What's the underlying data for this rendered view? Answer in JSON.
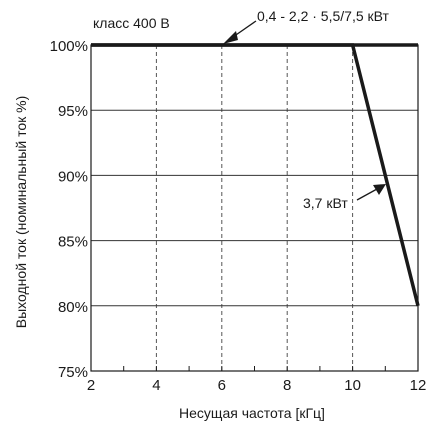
{
  "chart_data": {
    "type": "line",
    "title": "",
    "xlabel": "Несущая частота [кГц]",
    "ylabel": "Выходной ток (номинальный ток %)",
    "xlim": [
      2,
      12
    ],
    "ylim": [
      75,
      100
    ],
    "xticks": [
      2,
      4,
      6,
      8,
      10,
      12
    ],
    "yticks": [
      75,
      80,
      85,
      90,
      95,
      100
    ],
    "xtick_labels": [
      "2",
      "4",
      "6",
      "8",
      "10",
      "12"
    ],
    "ytick_labels": [
      "75%",
      "80%",
      "85%",
      "90%",
      "95%",
      "100%"
    ],
    "grid": {
      "vertical": "dashed",
      "horizontal": "solid"
    },
    "series": [
      {
        "name": "0,4 - 2,2 · 5,5/7,5 кВт",
        "x": [
          2,
          12
        ],
        "y": [
          100,
          100
        ],
        "color": "#1a1a1a"
      },
      {
        "name": "3,7 кВт",
        "x": [
          2,
          10,
          12
        ],
        "y": [
          100,
          100,
          80
        ],
        "color": "#1a1a1a"
      }
    ],
    "annotations": [
      {
        "text": "класс 400 В"
      },
      {
        "text": "0,4 - 2,2 · 5,5/7,5 кВт",
        "target_series": 0
      },
      {
        "text": "3,7 кВт",
        "target_series": 1
      }
    ]
  }
}
